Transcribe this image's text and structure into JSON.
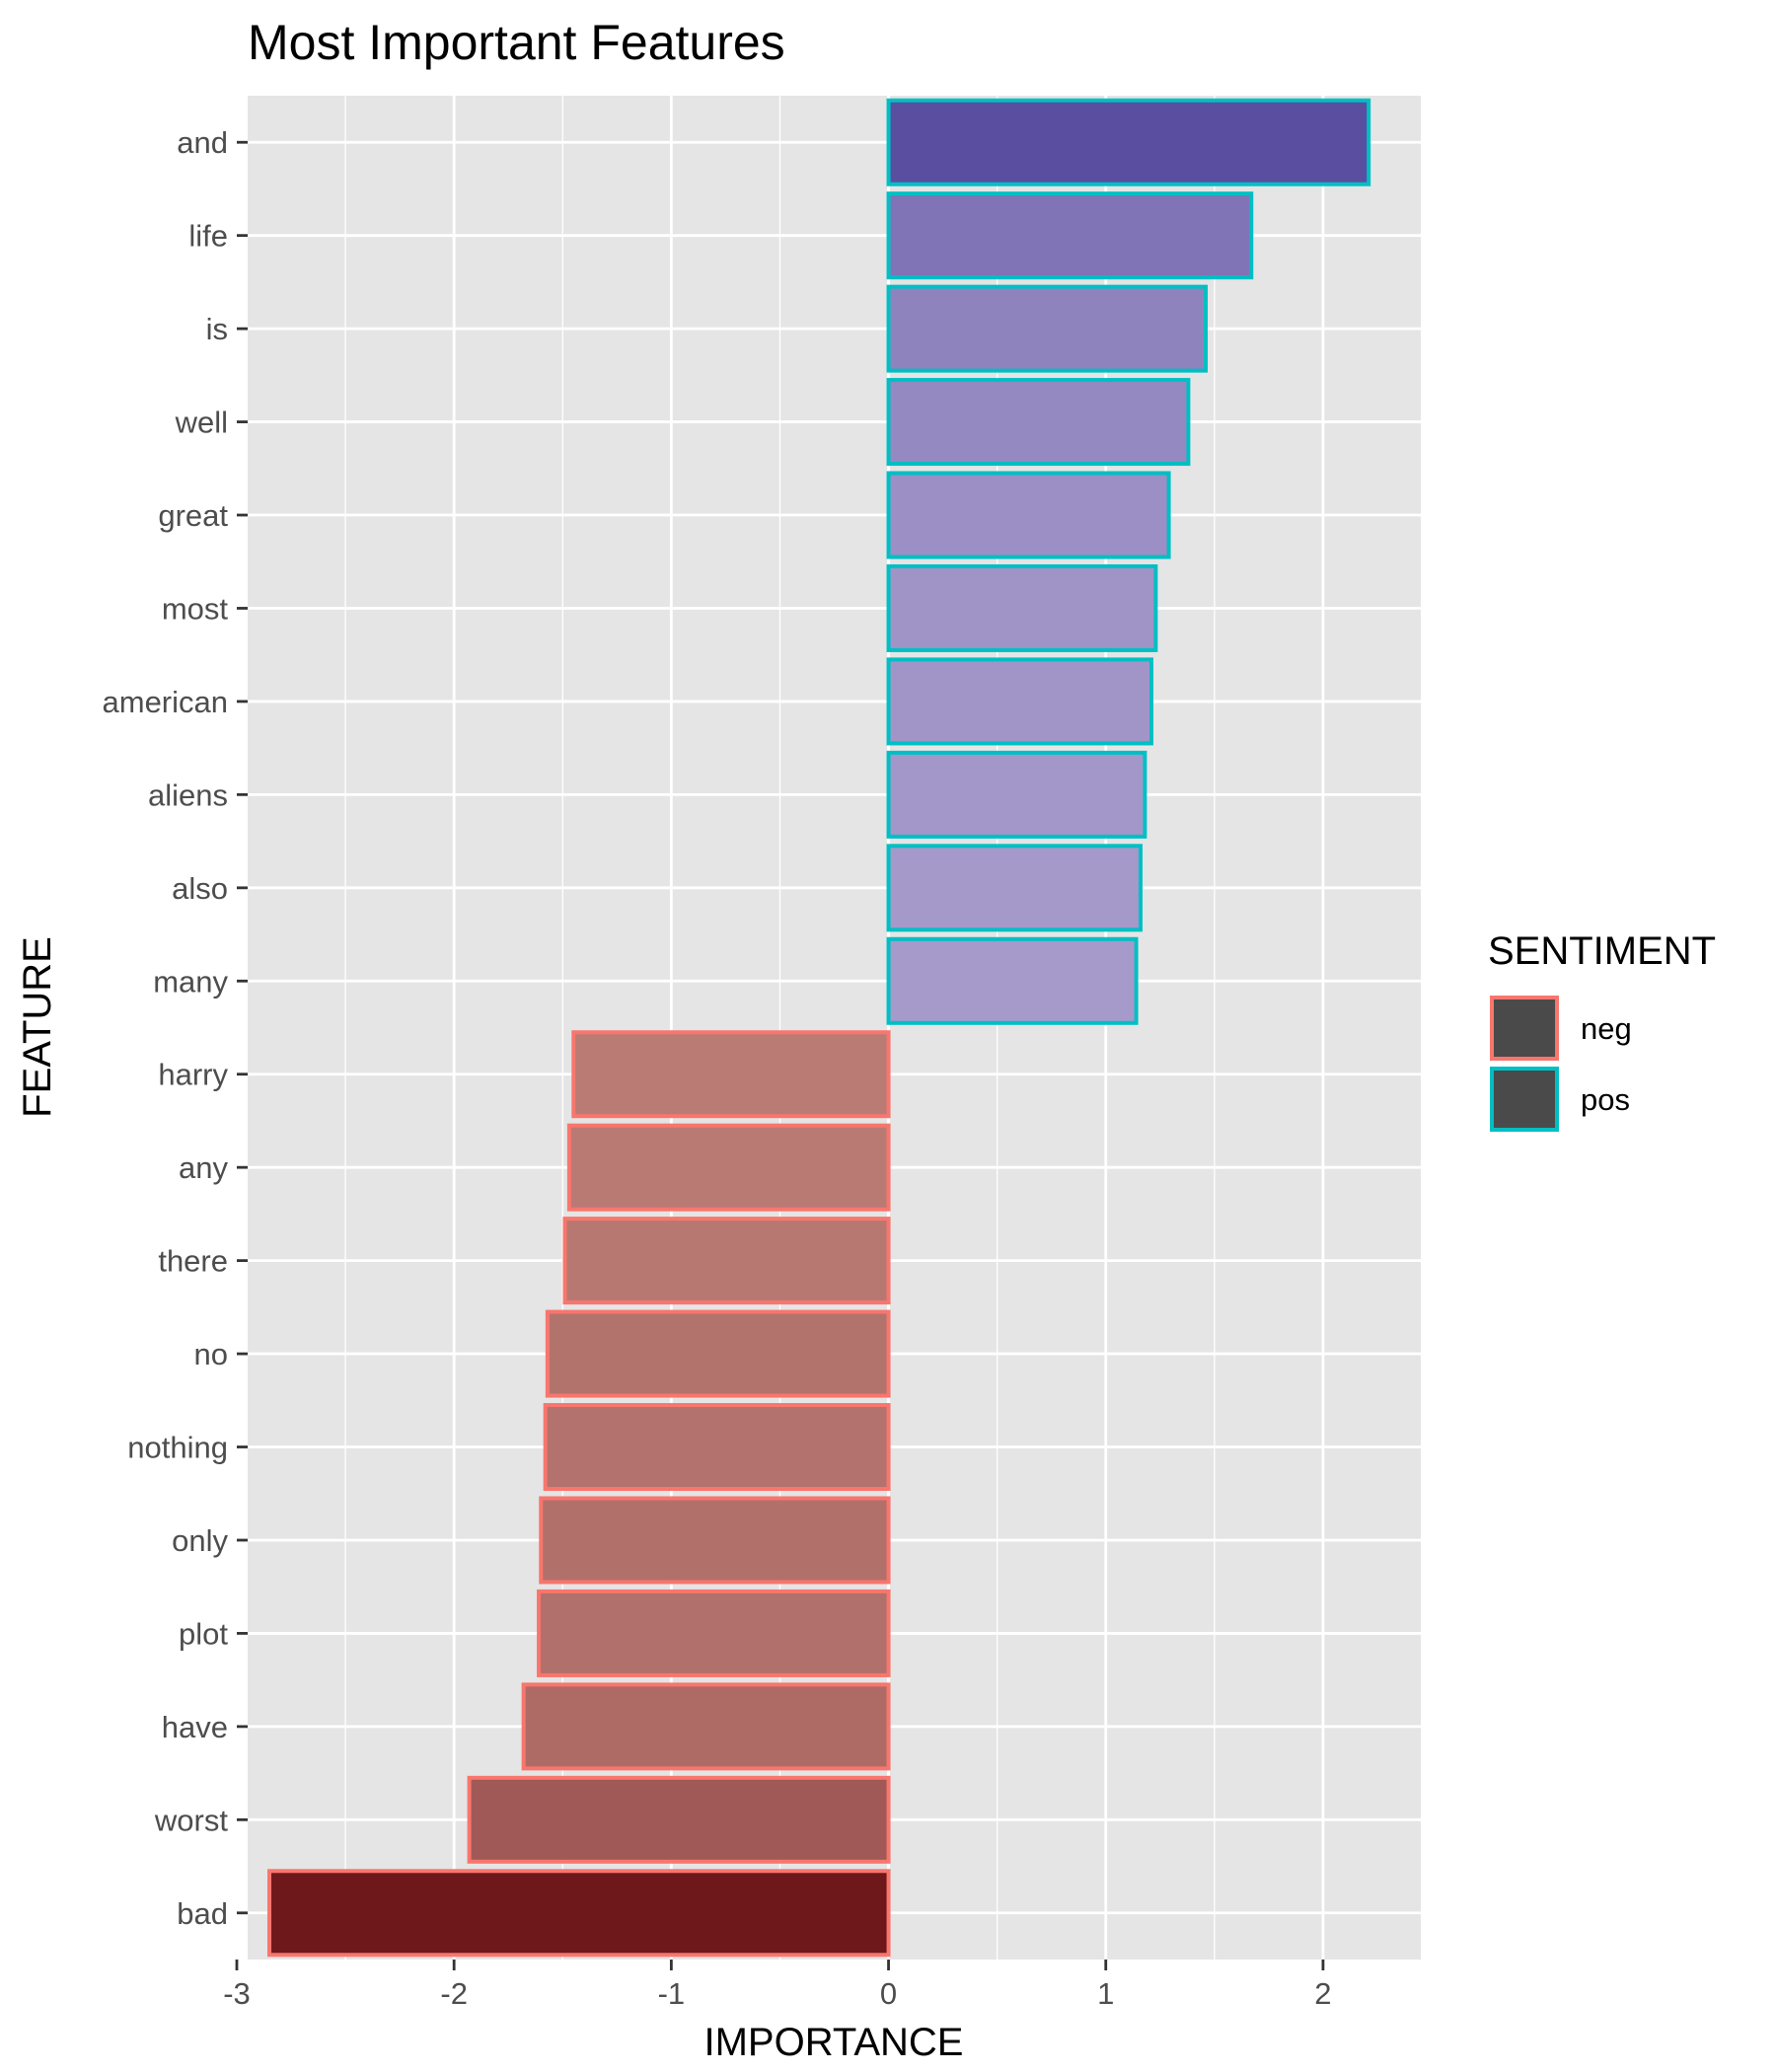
{
  "chart_data": {
    "type": "bar",
    "orientation": "horizontal",
    "title": "Most Important Features",
    "xlabel": "IMPORTANCE",
    "ylabel": "FEATURE",
    "xlim": [
      -2.95,
      2.45
    ],
    "xticks": [
      -3,
      -2,
      -1,
      0,
      1,
      2
    ],
    "xtick_labels": [
      "-3",
      "-2",
      "-1",
      "0",
      "1",
      "2"
    ],
    "grid": true,
    "legend": {
      "title": "SENTIMENT",
      "position": "right",
      "entries": [
        {
          "label": "neg",
          "outline": "#F8766D"
        },
        {
          "label": "pos",
          "outline": "#00BFC4"
        }
      ]
    },
    "categories": [
      "and",
      "life",
      "is",
      "well",
      "great",
      "most",
      "american",
      "aliens",
      "also",
      "many",
      "harry",
      "any",
      "there",
      "no",
      "nothing",
      "only",
      "plot",
      "have",
      "worst",
      "bad"
    ],
    "values": [
      2.21,
      1.67,
      1.46,
      1.38,
      1.29,
      1.23,
      1.21,
      1.18,
      1.16,
      1.14,
      -1.45,
      -1.47,
      -1.49,
      -1.57,
      -1.58,
      -1.6,
      -1.61,
      -1.68,
      -1.93,
      -2.85
    ],
    "sentiment": [
      "pos",
      "pos",
      "pos",
      "pos",
      "pos",
      "pos",
      "pos",
      "pos",
      "pos",
      "pos",
      "neg",
      "neg",
      "neg",
      "neg",
      "neg",
      "neg",
      "neg",
      "neg",
      "neg",
      "neg"
    ],
    "colors": {
      "panel_bg": "#E5E5E5",
      "grid": "#FFFFFF",
      "pos_outline": "#00BFC4",
      "neg_outline": "#F8766D",
      "pos_fill_strong": "#5A4EA0",
      "pos_fill_light": "#A69ACB",
      "neg_fill_strong": "#6E181C",
      "neg_fill_light": "#BA7B75",
      "legend_key_fill": "#4A4A4A"
    }
  }
}
